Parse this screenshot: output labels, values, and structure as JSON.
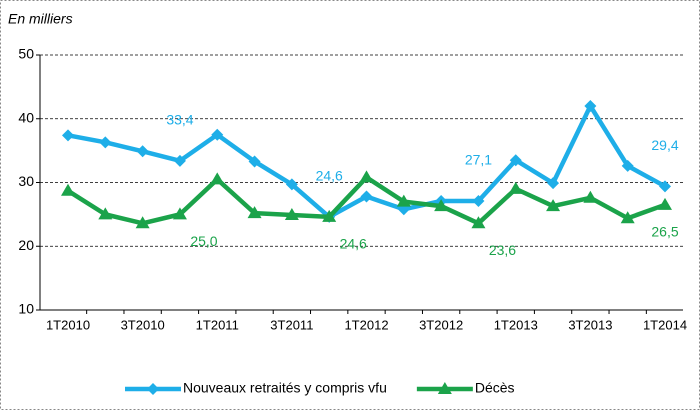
{
  "chart_data": {
    "type": "line",
    "subtitle": "En milliers",
    "categories": [
      "1T2010",
      null,
      "3T2010",
      null,
      "1T2011",
      null,
      "3T2011",
      null,
      "1T2012",
      null,
      "3T2012",
      null,
      "1T2013",
      null,
      "3T2013",
      null,
      "1T2014"
    ],
    "series": [
      {
        "name": "Nouveaux retraités y compris vfu",
        "color": "#1eaee8",
        "marker": "diamond",
        "values": [
          37.4,
          36.3,
          34.9,
          33.4,
          37.5,
          33.3,
          29.7,
          24.6,
          27.8,
          25.8,
          27.1,
          27.1,
          33.5,
          29.9,
          42.0,
          32.6,
          29.4
        ],
        "value_labels": [
          null,
          null,
          null,
          "33,4",
          null,
          null,
          null,
          "24,6",
          null,
          null,
          null,
          "27,1",
          null,
          null,
          null,
          null,
          "29,4"
        ]
      },
      {
        "name": "Décès",
        "color": "#1ba34a",
        "marker": "triangle",
        "values": [
          28.7,
          25.0,
          23.6,
          25.0,
          30.5,
          25.2,
          24.9,
          24.6,
          30.8,
          27.0,
          26.3,
          23.6,
          29.0,
          26.3,
          27.6,
          24.4,
          26.5
        ],
        "value_labels": [
          null,
          null,
          null,
          "25,0",
          null,
          null,
          null,
          "24,6",
          null,
          null,
          null,
          "23,6",
          null,
          null,
          null,
          null,
          "26,5"
        ]
      }
    ],
    "ylim": [
      10,
      50
    ],
    "yticks": [
      10,
      20,
      30,
      40,
      50
    ],
    "grid": true,
    "legend": "bottom"
  }
}
